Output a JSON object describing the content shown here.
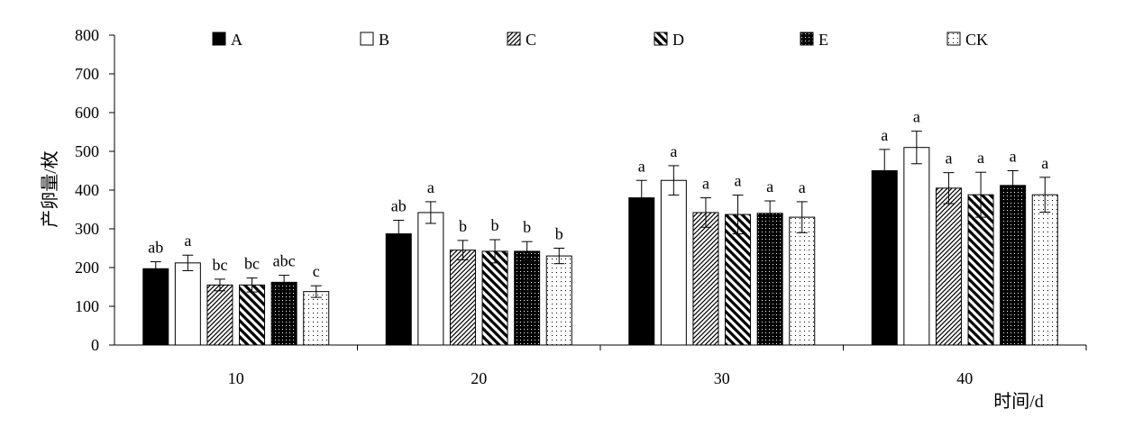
{
  "chart_data": {
    "type": "bar",
    "xlabel": "时间/d",
    "ylabel": "产卵量/枚",
    "ylim": [
      0,
      800
    ],
    "yticks": [
      0,
      100,
      200,
      300,
      400,
      500,
      600,
      700,
      800
    ],
    "categories": [
      "10",
      "20",
      "30",
      "40"
    ],
    "legend_position": "top",
    "grid": false,
    "series": [
      {
        "name": "A",
        "fill": "solid",
        "values": [
          197,
          287,
          380,
          450
        ],
        "errors": [
          18,
          35,
          45,
          55
        ],
        "letters": [
          "ab",
          "ab",
          "a",
          "a"
        ]
      },
      {
        "name": "B",
        "fill": "open",
        "values": [
          212,
          342,
          425,
          510
        ],
        "errors": [
          20,
          28,
          38,
          42
        ],
        "letters": [
          "a",
          "a",
          "a",
          "a"
        ]
      },
      {
        "name": "C",
        "fill": "thin-diagonal",
        "values": [
          155,
          245,
          342,
          405
        ],
        "errors": [
          15,
          25,
          38,
          40
        ],
        "letters": [
          "bc",
          "b",
          "a",
          "a"
        ]
      },
      {
        "name": "D",
        "fill": "wide-diagonal",
        "values": [
          155,
          242,
          337,
          388
        ],
        "errors": [
          18,
          30,
          50,
          58
        ],
        "letters": [
          "bc",
          "b",
          "a",
          "a"
        ]
      },
      {
        "name": "E",
        "fill": "dark-dots",
        "values": [
          162,
          242,
          340,
          412
        ],
        "errors": [
          18,
          25,
          32,
          38
        ],
        "letters": [
          "abc",
          "b",
          "a",
          "a"
        ]
      },
      {
        "name": "CK",
        "fill": "light-dots",
        "values": [
          138,
          230,
          330,
          388
        ],
        "errors": [
          15,
          20,
          40,
          45
        ],
        "letters": [
          "c",
          "b",
          "a",
          "a"
        ]
      }
    ]
  }
}
